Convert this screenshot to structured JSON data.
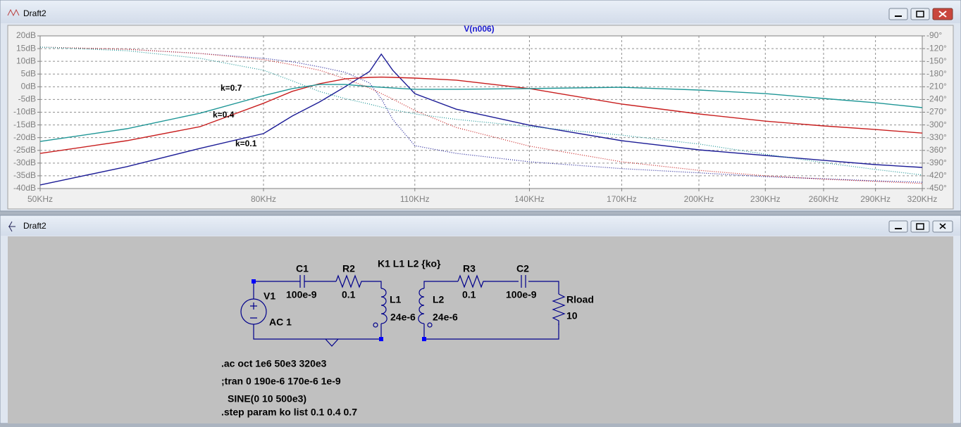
{
  "windows": [
    {
      "title": "Draft2"
    },
    {
      "title": "Draft2"
    }
  ],
  "chart_data": {
    "type": "line",
    "title": "V(n006)",
    "xscale": "log",
    "grid": true,
    "x": [
      50000,
      60000,
      70000,
      80000,
      85000,
      90000,
      95000,
      100000,
      102500,
      105000,
      110000,
      120000,
      140000,
      170000,
      200000,
      230000,
      260000,
      290000,
      320000
    ],
    "xlim": [
      50000,
      320000
    ],
    "xticks": [
      {
        "value": 50000,
        "label": "50KHz"
      },
      {
        "value": 80000,
        "label": "80KHz"
      },
      {
        "value": 110000,
        "label": "110KHz"
      },
      {
        "value": 140000,
        "label": "140KHz"
      },
      {
        "value": 170000,
        "label": "170KHz"
      },
      {
        "value": 200000,
        "label": "200KHz"
      },
      {
        "value": 230000,
        "label": "230KHz"
      },
      {
        "value": 260000,
        "label": "260KHz"
      },
      {
        "value": 290000,
        "label": "290KHz"
      },
      {
        "value": 320000,
        "label": "320KHz"
      }
    ],
    "ylim": [
      -40,
      20
    ],
    "yticks": [
      {
        "value": 20,
        "label": "20dB"
      },
      {
        "value": 15,
        "label": "15dB"
      },
      {
        "value": 10,
        "label": "10dB"
      },
      {
        "value": 5,
        "label": "5dB"
      },
      {
        "value": 0,
        "label": "0dB"
      },
      {
        "value": -5,
        "label": "-5dB"
      },
      {
        "value": -10,
        "label": "-10dB"
      },
      {
        "value": -15,
        "label": "-15dB"
      },
      {
        "value": -20,
        "label": "-20dB"
      },
      {
        "value": -25,
        "label": "-25dB"
      },
      {
        "value": -30,
        "label": "-30dB"
      },
      {
        "value": -35,
        "label": "-35dB"
      },
      {
        "value": -40,
        "label": "-40dB"
      }
    ],
    "y2lim": [
      -450,
      -90
    ],
    "y2ticks": [
      {
        "value": -90,
        "label": "-90°"
      },
      {
        "value": -120,
        "label": "-120°"
      },
      {
        "value": -150,
        "label": "-150°"
      },
      {
        "value": -180,
        "label": "-180°"
      },
      {
        "value": -210,
        "label": "-210°"
      },
      {
        "value": -240,
        "label": "-240°"
      },
      {
        "value": -270,
        "label": "-270°"
      },
      {
        "value": -300,
        "label": "-300°"
      },
      {
        "value": -330,
        "label": "-330°"
      },
      {
        "value": -360,
        "label": "-360°"
      },
      {
        "value": -390,
        "label": "-390°"
      },
      {
        "value": -420,
        "label": "-420°"
      },
      {
        "value": -450,
        "label": "-450°"
      }
    ],
    "series": [
      {
        "name": "k=0.1",
        "color": "#1c1c96",
        "dash": "solid",
        "values": [
          -38.6,
          -31.4,
          -24.2,
          -18.4,
          -11.5,
          -6,
          0,
          6,
          12.8,
          6.5,
          -2.7,
          -8.8,
          -15.1,
          -21.2,
          -24.8,
          -27,
          -28.9,
          -30.6,
          -31.7
        ]
      },
      {
        "name": "k=0.4",
        "color": "#c81e1e",
        "dash": "solid",
        "values": [
          -26.2,
          -21.2,
          -15.7,
          -6.5,
          -1.8,
          1.2,
          3.1,
          3.7,
          3.8,
          3.7,
          3.4,
          2.6,
          -0.7,
          -6.8,
          -10.7,
          -13.5,
          -15.4,
          -16.8,
          -18.2
        ]
      },
      {
        "name": "k=0.7",
        "color": "#1e9696",
        "dash": "solid",
        "values": [
          -21.5,
          -16.5,
          -10.4,
          -3.5,
          -0.7,
          0.9,
          0.9,
          0.1,
          -0.2,
          -0.5,
          -1,
          -1,
          -0.7,
          -0.2,
          -1.3,
          -2.7,
          -4.6,
          -6.3,
          -8.2
        ]
      },
      {
        "color": "#1c1c96",
        "dash": "dotted",
        "axis": "y2",
        "values": [
          -116.5,
          -121.5,
          -131.5,
          -143,
          -151,
          -163,
          -176,
          -201,
          -238,
          -287,
          -349,
          -367,
          -387,
          -403,
          -413,
          -422,
          -427,
          -432,
          -435
        ]
      },
      {
        "color": "#c81e1e",
        "dash": "dotted",
        "axis": "y2",
        "values": [
          -116.5,
          -121.5,
          -131.5,
          -146,
          -158,
          -171,
          -191,
          -213,
          -226,
          -239,
          -266,
          -306,
          -350,
          -387,
          -407,
          -420,
          -428,
          -433,
          -438
        ]
      },
      {
        "color": "#1e9696",
        "dash": "dotted",
        "axis": "y2",
        "values": [
          -116.5,
          -125,
          -143,
          -171,
          -196,
          -221,
          -238,
          -251,
          -258,
          -264,
          -274,
          -287,
          -304,
          -324,
          -345,
          -369,
          -389,
          -405,
          -418
        ]
      }
    ]
  },
  "schematic": {
    "c1": {
      "name": "C1",
      "value": "100e-9"
    },
    "r2": {
      "name": "R2",
      "value": "0.1"
    },
    "coupling": "K1 L1 L2 {ko}",
    "r3": {
      "name": "R3",
      "value": "0.1"
    },
    "c2": {
      "name": "C2",
      "value": "100e-9"
    },
    "rload": {
      "name": "Rload",
      "value": "10"
    },
    "v1": {
      "name": "V1",
      "value": "AC 1"
    },
    "l1": {
      "name": "L1",
      "value": "24e-6"
    },
    "l2": {
      "name": "L2",
      "value": "24e-6"
    },
    "directives": [
      ".ac oct 1e6 50e3 320e3",
      ";tran 0 190e-6 170e-6 1e-9",
      "SINE(0 10 500e3)",
      ".step param ko list 0.1 0.4 0.7"
    ]
  }
}
